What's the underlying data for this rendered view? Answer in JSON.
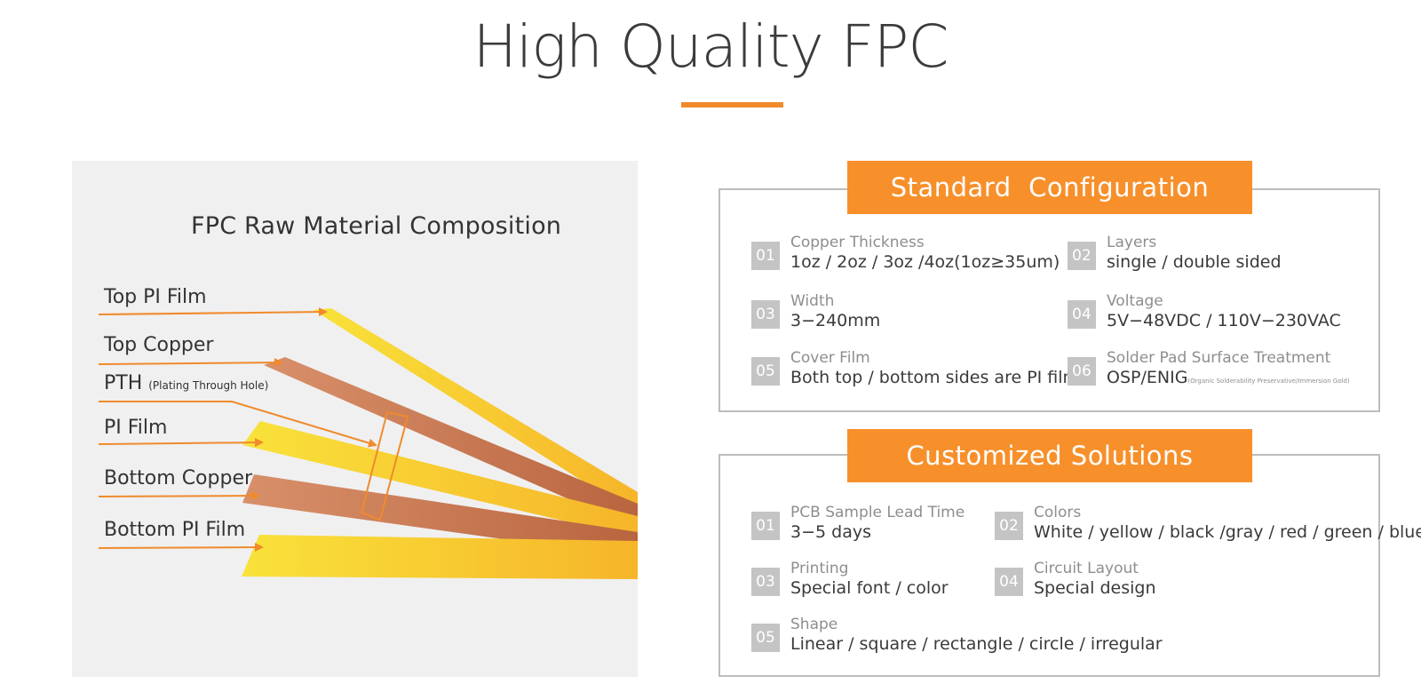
{
  "header": {
    "title": "High Quality FPC"
  },
  "diagram": {
    "title": "FPC Raw Material Composition",
    "layers": [
      {
        "name": "Top PI Film",
        "note": ""
      },
      {
        "name": "Top Copper",
        "note": ""
      },
      {
        "name": "PTH",
        "note": "(Plating Through Hole)"
      },
      {
        "name": "PI Film",
        "note": ""
      },
      {
        "name": "Bottom Copper",
        "note": ""
      },
      {
        "name": "Bottom PI Film",
        "note": ""
      }
    ],
    "colors": {
      "film": "#f7c12e",
      "copper": "#c8764a",
      "arrow": "#f08a2c"
    }
  },
  "standard": {
    "heading": "Standard  Configuration",
    "items": [
      {
        "num": "01",
        "label": "Copper Thickness",
        "value": "1oz / 2oz / 3oz /4oz(1oz≥35um)",
        "note": ""
      },
      {
        "num": "02",
        "label": "Layers",
        "value": "single / double sided",
        "note": ""
      },
      {
        "num": "03",
        "label": "Width",
        "value": "3−240mm",
        "note": ""
      },
      {
        "num": "04",
        "label": "Voltage",
        "value": "5V−48VDC / 110V−230VAC",
        "note": ""
      },
      {
        "num": "05",
        "label": "Cover Film",
        "value": "Both top / bottom sides are PI film",
        "note": ""
      },
      {
        "num": "06",
        "label": "Solder Pad Surface Treatment",
        "value": "OSP/ENIG",
        "note": "(Organic Solderability Preservative/Immersion Gold)"
      }
    ]
  },
  "custom": {
    "heading": "Customized Solutions",
    "items": [
      {
        "num": "01",
        "label": "PCB Sample Lead Time",
        "value": "3−5 days"
      },
      {
        "num": "02",
        "label": "Colors",
        "value": "White / yellow / black /gray / red / green / blue"
      },
      {
        "num": "03",
        "label": "Printing",
        "value": "Special font / color"
      },
      {
        "num": "04",
        "label": "Circuit Layout",
        "value": "Special design"
      },
      {
        "num": "05",
        "label": "Shape",
        "value": "Linear / square / rectangle / circle / irregular"
      }
    ]
  },
  "accent_color": "#f7902b"
}
